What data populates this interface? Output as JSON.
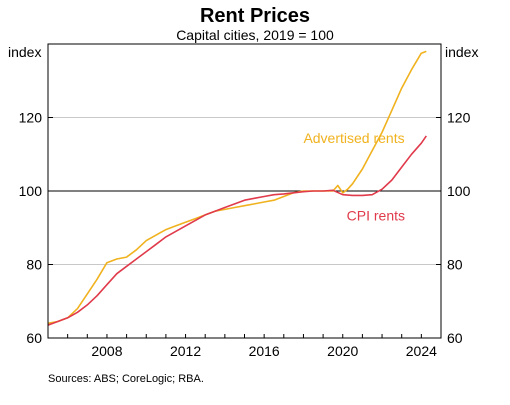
{
  "chart_data": {
    "type": "line",
    "title": "Rent Prices",
    "subtitle": "Capital cities, 2019 = 100",
    "ylabel_left": "index",
    "ylabel_right": "index",
    "xlim": [
      2005,
      2025
    ],
    "ylim": [
      60,
      140
    ],
    "y_ticks": [
      60,
      80,
      100,
      120
    ],
    "x_ticks": [
      2008,
      2012,
      2016,
      2020,
      2024
    ],
    "reference_line": 100,
    "grid": true,
    "source": "Sources: ABS; CoreLogic; RBA.",
    "series": [
      {
        "name": "Advertised rents",
        "color": "#f0b21e",
        "points": [
          [
            2005.0,
            64
          ],
          [
            2005.5,
            64.5
          ],
          [
            2006.0,
            65.5
          ],
          [
            2006.5,
            68
          ],
          [
            2007.0,
            72
          ],
          [
            2007.5,
            76
          ],
          [
            2008.0,
            80.5
          ],
          [
            2008.5,
            81.5
          ],
          [
            2009.0,
            82
          ],
          [
            2009.5,
            84
          ],
          [
            2010.0,
            86.5
          ],
          [
            2010.5,
            88
          ],
          [
            2011.0,
            89.5
          ],
          [
            2011.5,
            90.5
          ],
          [
            2012.0,
            91.5
          ],
          [
            2012.5,
            92.5
          ],
          [
            2013.0,
            93.5
          ],
          [
            2013.5,
            94.5
          ],
          [
            2014.0,
            95
          ],
          [
            2014.5,
            95.5
          ],
          [
            2015.0,
            96
          ],
          [
            2015.5,
            96.5
          ],
          [
            2016.0,
            97
          ],
          [
            2016.5,
            97.5
          ],
          [
            2017.0,
            98.5
          ],
          [
            2017.5,
            99.5
          ],
          [
            2018.0,
            100
          ],
          [
            2018.5,
            100
          ],
          [
            2019.0,
            100
          ],
          [
            2019.5,
            100
          ],
          [
            2019.75,
            101.5
          ],
          [
            2020.0,
            99.5
          ],
          [
            2020.25,
            100.5
          ],
          [
            2020.5,
            102
          ],
          [
            2021.0,
            106
          ],
          [
            2021.5,
            111
          ],
          [
            2022.0,
            116
          ],
          [
            2022.5,
            122
          ],
          [
            2023.0,
            128
          ],
          [
            2023.5,
            133
          ],
          [
            2024.0,
            137.5
          ],
          [
            2024.25,
            138
          ]
        ]
      },
      {
        "name": "CPI rents",
        "color": "#e03a4b",
        "points": [
          [
            2005.0,
            63.5
          ],
          [
            2005.5,
            64.5
          ],
          [
            2006.0,
            65.5
          ],
          [
            2006.5,
            67
          ],
          [
            2007.0,
            69
          ],
          [
            2007.5,
            71.5
          ],
          [
            2008.0,
            74.5
          ],
          [
            2008.5,
            77.5
          ],
          [
            2009.0,
            79.5
          ],
          [
            2009.5,
            81.5
          ],
          [
            2010.0,
            83.5
          ],
          [
            2010.5,
            85.5
          ],
          [
            2011.0,
            87.5
          ],
          [
            2011.5,
            89
          ],
          [
            2012.0,
            90.5
          ],
          [
            2012.5,
            92
          ],
          [
            2013.0,
            93.5
          ],
          [
            2013.5,
            94.5
          ],
          [
            2014.0,
            95.5
          ],
          [
            2014.5,
            96.5
          ],
          [
            2015.0,
            97.5
          ],
          [
            2015.5,
            98
          ],
          [
            2016.0,
            98.5
          ],
          [
            2016.5,
            99
          ],
          [
            2017.0,
            99.2
          ],
          [
            2017.5,
            99.5
          ],
          [
            2018.0,
            99.8
          ],
          [
            2018.5,
            100
          ],
          [
            2019.0,
            100
          ],
          [
            2019.5,
            100.2
          ],
          [
            2020.0,
            99
          ],
          [
            2020.5,
            98.8
          ],
          [
            2021.0,
            98.8
          ],
          [
            2021.5,
            99
          ],
          [
            2022.0,
            100.5
          ],
          [
            2022.5,
            103
          ],
          [
            2023.0,
            106.5
          ],
          [
            2023.5,
            110
          ],
          [
            2024.0,
            113
          ],
          [
            2024.25,
            115
          ]
        ]
      }
    ]
  }
}
